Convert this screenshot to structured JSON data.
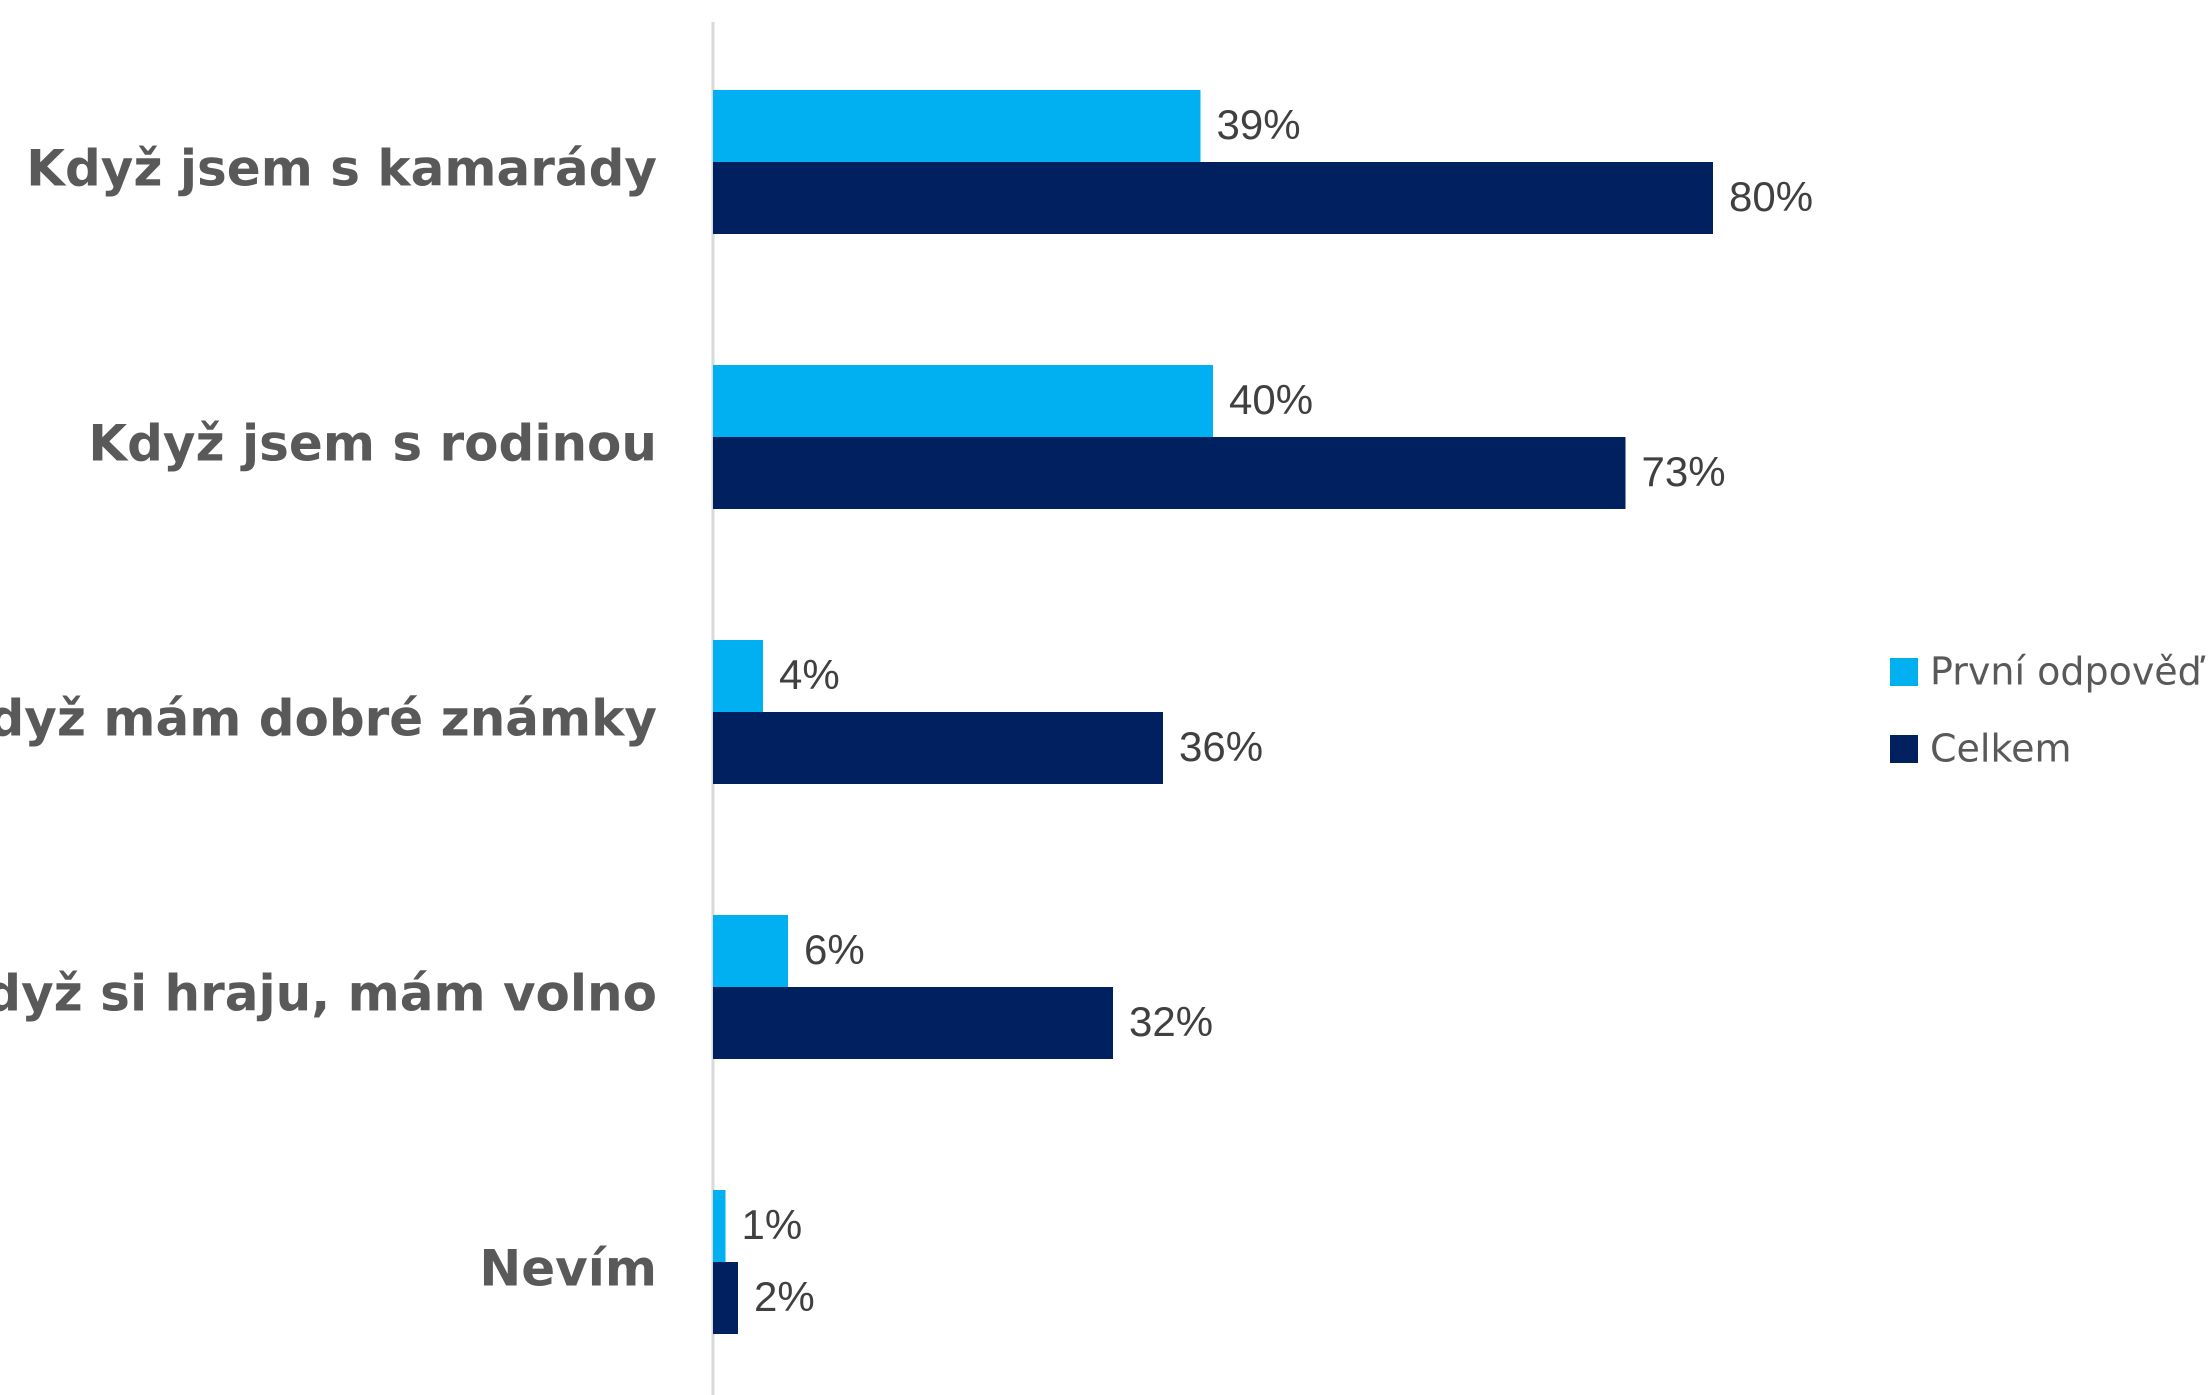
{
  "chart_data": {
    "type": "bar",
    "orientation": "horizontal",
    "categories": [
      "Když jsem s kamarády",
      "Když jsem s rodinou",
      "Když mám dobré známky",
      "Když si hraju, mám volno",
      "Nevím"
    ],
    "series": [
      {
        "name": "První odpověď",
        "color": "#00b0f0",
        "values": [
          39,
          40,
          4,
          6,
          1
        ],
        "labels": [
          "39%",
          "40%",
          "4%",
          "6%",
          "1%"
        ]
      },
      {
        "name": "Celkem",
        "color": "#002060",
        "values": [
          80,
          73,
          36,
          32,
          2
        ],
        "labels": [
          "80%",
          "73%",
          "36%",
          "32%",
          "2%"
        ]
      }
    ],
    "xlim": [
      0,
      100
    ],
    "grid": false,
    "legend_position": "right"
  }
}
